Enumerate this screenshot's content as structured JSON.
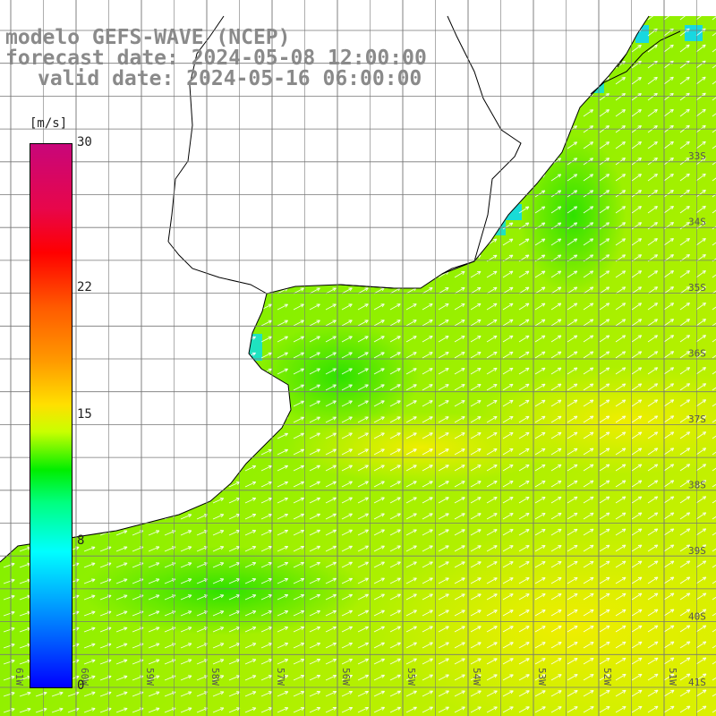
{
  "title": {
    "line1": "modelo GEFS-WAVE (NCEP)",
    "line2": "forecast date: 2024-05-08 12:00:00",
    "line3": "valid date: 2024-05-16 06:00:00"
  },
  "colorbar": {
    "unit": "[m/s]",
    "ticks": [
      "30",
      "22",
      "15",
      "8",
      "0"
    ],
    "tick_values": [
      30,
      22,
      15,
      8,
      0
    ],
    "range": [
      0,
      30
    ]
  },
  "map": {
    "lon_labels": [
      "61W",
      "60W",
      "59W",
      "58W",
      "57W",
      "56W",
      "55W",
      "54W",
      "53W",
      "52W",
      "51W"
    ],
    "lat_labels": [
      "33S",
      "34S",
      "35S",
      "36S",
      "37S",
      "38S",
      "39S",
      "40S",
      "41S"
    ],
    "field": "wind speed",
    "arrow_direction": "northeast"
  }
}
